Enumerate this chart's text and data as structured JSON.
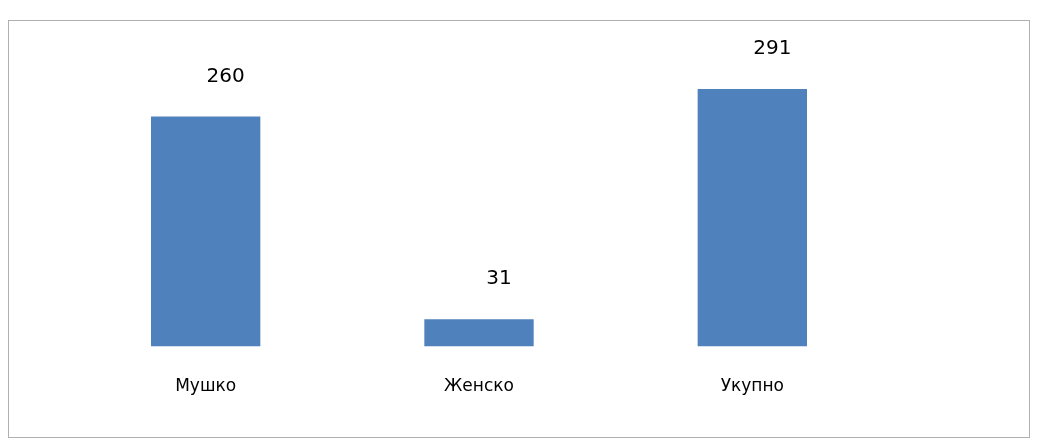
{
  "chart_data": {
    "type": "bar",
    "categories": [
      "Мушко",
      "Женско",
      "Укупно"
    ],
    "values": [
      260,
      31,
      291
    ],
    "color": "#4f81bd",
    "data_labels": true,
    "grid": false,
    "legend": false
  }
}
